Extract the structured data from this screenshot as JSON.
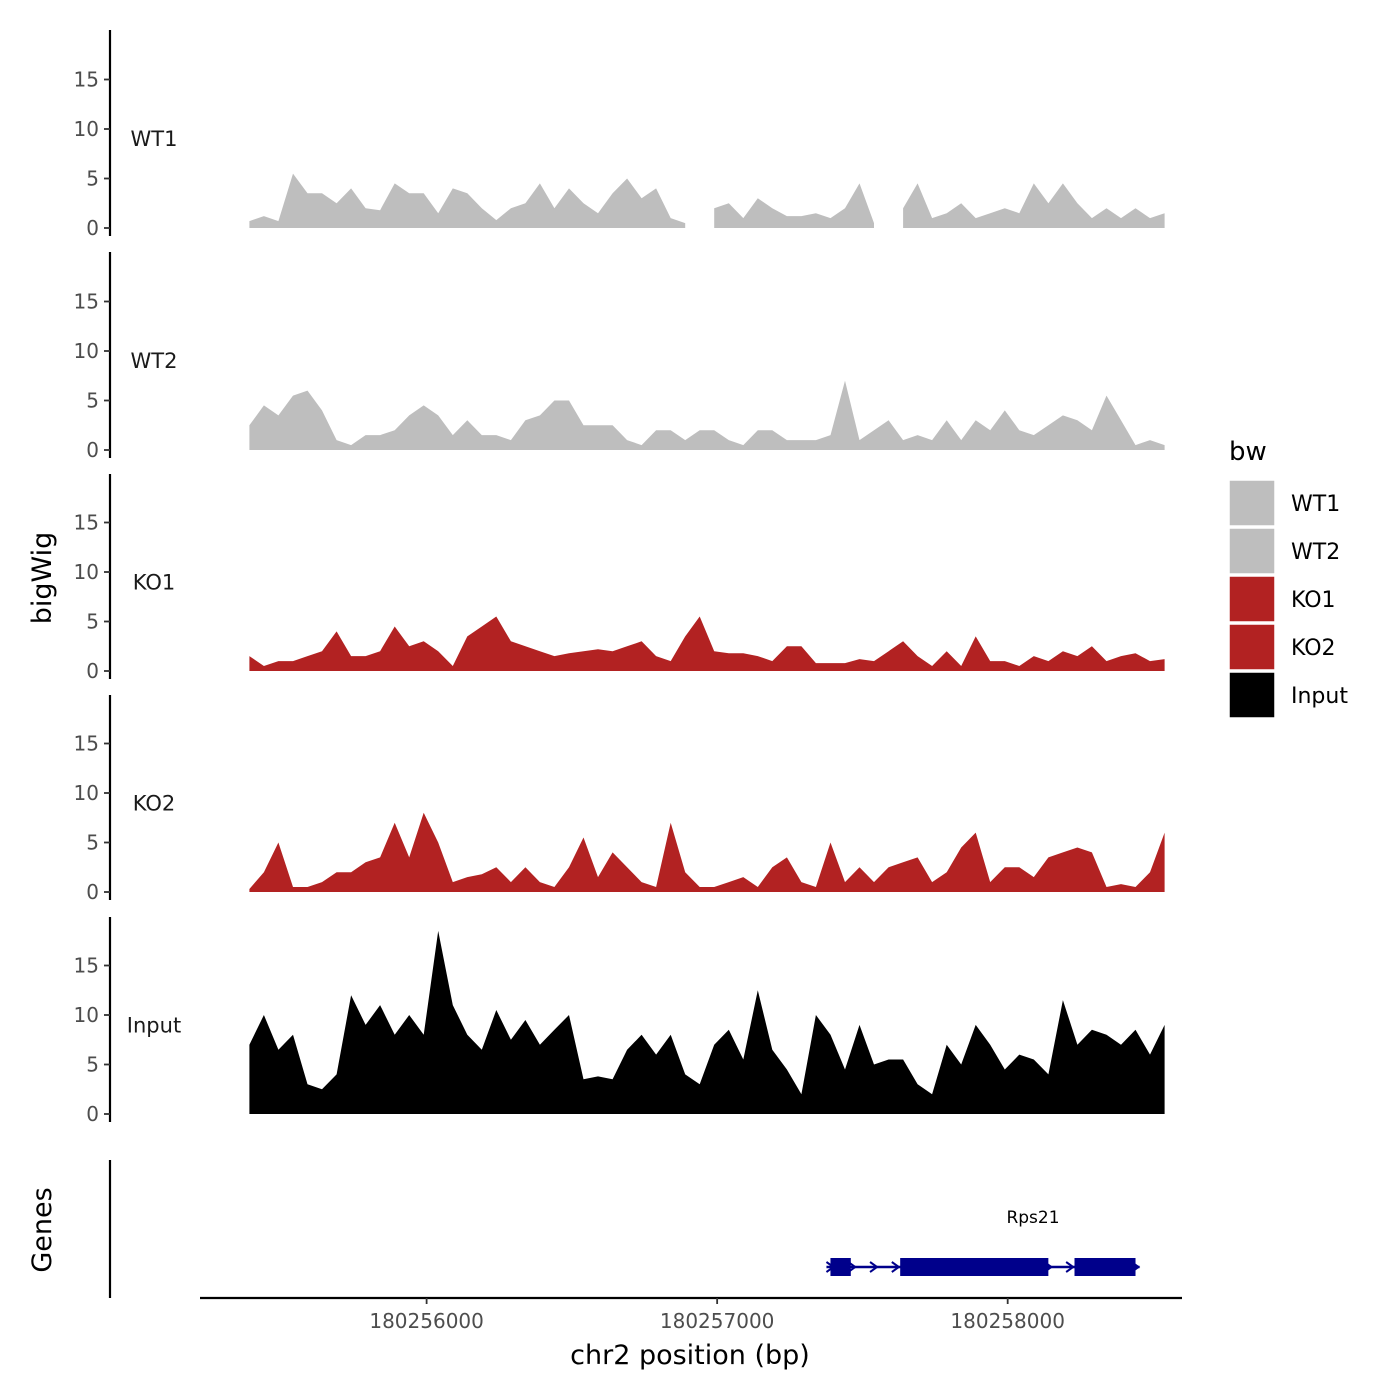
{
  "chart_data": {
    "type": "area",
    "y_axis_title": "bigWig",
    "x_axis_title": "chr2 position (bp)",
    "gene_panel_title": "Genes",
    "ylim": [
      0,
      20
    ],
    "y_ticks": [
      0,
      5,
      10,
      15
    ],
    "x_range": [
      180255220,
      180258600
    ],
    "x_ticks": [
      180256000,
      180257000,
      180258000
    ],
    "x_tick_labels": [
      "180256000",
      "180257000",
      "180258000"
    ],
    "legend": {
      "title": "bw",
      "entries": [
        {
          "label": "WT1",
          "color": "#bebebe"
        },
        {
          "label": "WT2",
          "color": "#bebebe"
        },
        {
          "label": "KO1",
          "color": "#b22222"
        },
        {
          "label": "KO2",
          "color": "#b22222"
        },
        {
          "label": "Input",
          "color": "#000000"
        }
      ]
    },
    "data_start": 180255390,
    "data_step": 50,
    "tracks": [
      {
        "name": "WT1",
        "color": "#bebebe",
        "values": [
          0.7,
          1.2,
          0.7,
          5.5,
          3.5,
          3.5,
          2.5,
          4.0,
          2.0,
          1.8,
          4.5,
          3.5,
          3.5,
          1.5,
          4.0,
          3.5,
          2.0,
          0.8,
          2.0,
          2.5,
          4.5,
          2.0,
          4.0,
          2.5,
          1.5,
          3.5,
          5.0,
          3.0,
          4.0,
          1.0,
          0.5,
          null,
          2.0,
          2.5,
          1.0,
          3.0,
          2.0,
          1.2,
          1.2,
          1.5,
          1.0,
          2.0,
          4.5,
          0.5,
          null,
          2.0,
          4.5,
          1.0,
          1.5,
          2.5,
          1.0,
          1.5,
          2.0,
          1.5,
          4.5,
          2.5,
          4.5,
          2.5,
          1.0,
          2.0,
          1.0,
          2.0,
          1.0,
          1.5
        ]
      },
      {
        "name": "WT2",
        "color": "#bebebe",
        "values": [
          2.5,
          4.5,
          3.5,
          5.5,
          6.0,
          4.0,
          1.0,
          0.5,
          1.5,
          1.5,
          2.0,
          3.5,
          4.5,
          3.5,
          1.5,
          3.0,
          1.5,
          1.5,
          1.0,
          3.0,
          3.5,
          5.0,
          5.0,
          2.5,
          2.5,
          2.5,
          1.0,
          0.5,
          2.0,
          2.0,
          1.0,
          2.0,
          2.0,
          1.0,
          0.5,
          2.0,
          2.0,
          1.0,
          1.0,
          1.0,
          1.5,
          7.0,
          1.0,
          2.0,
          3.0,
          1.0,
          1.5,
          1.0,
          3.0,
          1.0,
          3.0,
          2.0,
          4.0,
          2.0,
          1.5,
          2.5,
          3.5,
          3.0,
          2.0,
          5.5,
          3.0,
          0.5,
          1.0,
          0.5
        ]
      },
      {
        "name": "KO1",
        "color": "#b22222",
        "values": [
          1.5,
          0.5,
          1.0,
          1.0,
          1.5,
          2.0,
          4.0,
          1.5,
          1.5,
          2.0,
          4.5,
          2.5,
          3.0,
          2.0,
          0.5,
          3.5,
          4.5,
          5.5,
          3.0,
          2.5,
          2.0,
          1.5,
          1.8,
          2.0,
          2.2,
          2.0,
          2.5,
          3.0,
          1.5,
          1.0,
          3.5,
          5.5,
          2.0,
          1.8,
          1.8,
          1.5,
          1.0,
          2.5,
          2.5,
          0.8,
          0.8,
          0.8,
          1.2,
          1.0,
          2.0,
          3.0,
          1.5,
          0.5,
          2.0,
          0.5,
          3.5,
          1.0,
          1.0,
          0.5,
          1.5,
          1.0,
          2.0,
          1.5,
          2.5,
          1.0,
          1.5,
          1.8,
          1.0,
          1.2
        ]
      },
      {
        "name": "KO2",
        "color": "#b22222",
        "values": [
          0.3,
          2.0,
          5.0,
          0.5,
          0.5,
          1.0,
          2.0,
          2.0,
          3.0,
          3.5,
          7.0,
          3.5,
          8.0,
          5.0,
          1.0,
          1.5,
          1.8,
          2.5,
          1.0,
          2.5,
          1.0,
          0.5,
          2.5,
          5.5,
          1.5,
          4.0,
          2.5,
          1.0,
          0.5,
          7.0,
          2.0,
          0.5,
          0.5,
          1.0,
          1.5,
          0.5,
          2.5,
          3.5,
          1.0,
          0.5,
          5.0,
          1.0,
          2.5,
          1.0,
          2.5,
          3.0,
          3.5,
          1.0,
          2.0,
          4.5,
          6.0,
          1.0,
          2.5,
          2.5,
          1.5,
          3.5,
          4.0,
          4.5,
          4.0,
          0.5,
          0.8,
          0.5,
          2.0,
          6.0
        ]
      },
      {
        "name": "Input",
        "color": "#000000",
        "values": [
          7.0,
          10.0,
          6.5,
          8.0,
          3.0,
          2.5,
          4.0,
          12.0,
          9.0,
          11.0,
          8.0,
          10.0,
          8.0,
          18.5,
          11.0,
          8.0,
          6.5,
          10.5,
          7.5,
          9.5,
          7.0,
          8.5,
          10.0,
          3.5,
          3.8,
          3.5,
          6.5,
          8.0,
          6.0,
          8.0,
          4.0,
          3.0,
          7.0,
          8.5,
          5.5,
          12.5,
          6.5,
          4.5,
          2.0,
          10.0,
          8.0,
          4.5,
          9.0,
          5.0,
          5.5,
          5.5,
          3.0,
          2.0,
          7.0,
          5.0,
          9.0,
          7.0,
          4.5,
          6.0,
          5.5,
          4.0,
          11.5,
          7.0,
          8.5,
          8.0,
          7.0,
          8.5,
          6.0,
          9.0
        ]
      }
    ],
    "gene": {
      "name": "Rps21",
      "color": "#00008b",
      "start": 180257390,
      "end": 180258440,
      "strand": "+",
      "exons": [
        [
          180257390,
          180257460
        ],
        [
          180257630,
          180258140
        ],
        [
          180258230,
          180258440
        ]
      ]
    }
  }
}
